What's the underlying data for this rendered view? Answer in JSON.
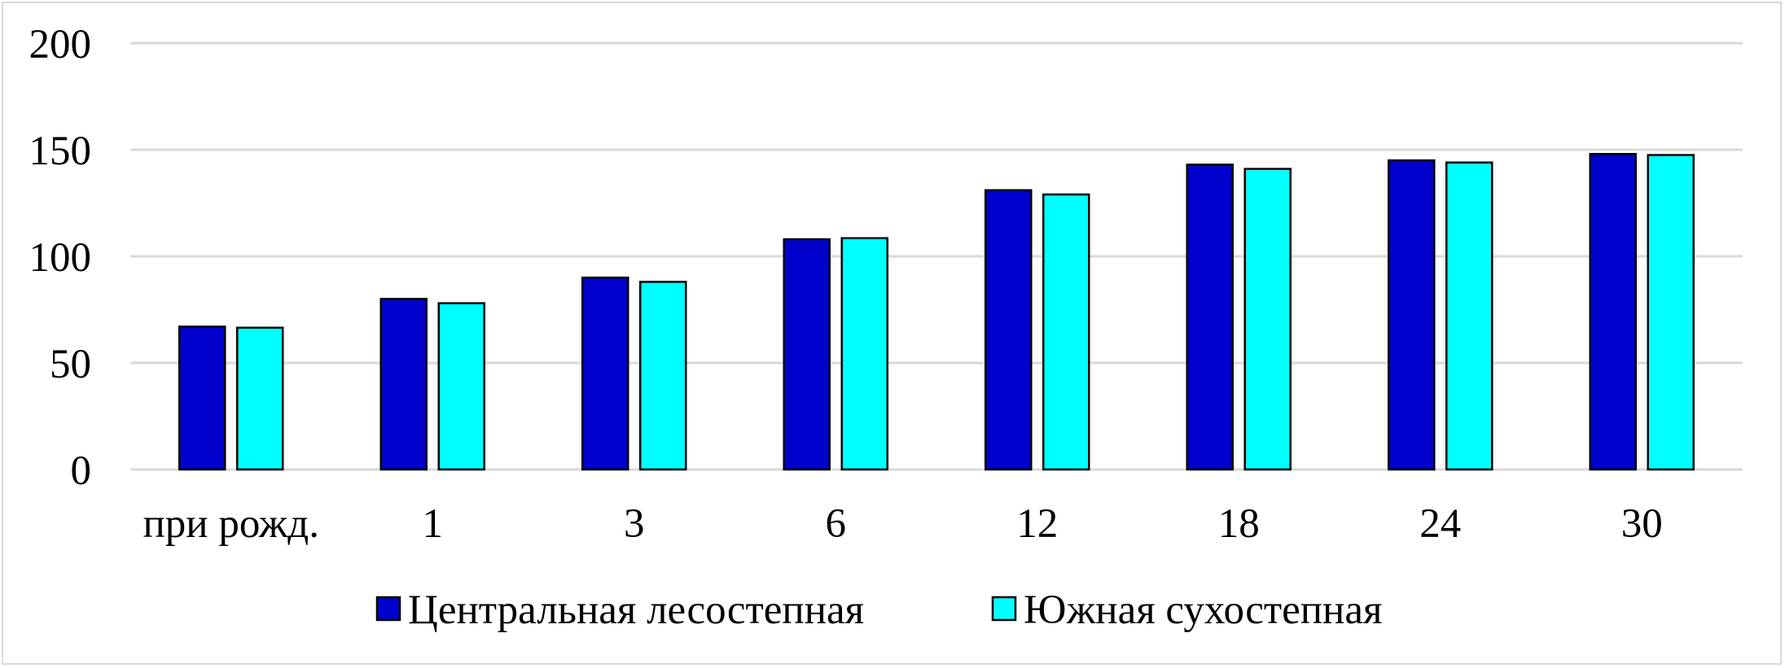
{
  "chart_data": {
    "type": "bar",
    "categories": [
      "при рожд.",
      "1",
      "3",
      "6",
      "12",
      "18",
      "24",
      "30"
    ],
    "series": [
      {
        "name": "Центральная лесостепная",
        "color": "#0000cc",
        "values": [
          67,
          80,
          90,
          108,
          131,
          143,
          145,
          148
        ]
      },
      {
        "name": "Южная сухостепная",
        "color": "#00ffff",
        "values": [
          66.5,
          78,
          88,
          108.5,
          129,
          141,
          144,
          147.5
        ]
      }
    ],
    "yticks": [
      0,
      50,
      100,
      150,
      200
    ],
    "ylim": [
      0,
      200
    ],
    "grid": true,
    "legend_position": "bottom"
  }
}
